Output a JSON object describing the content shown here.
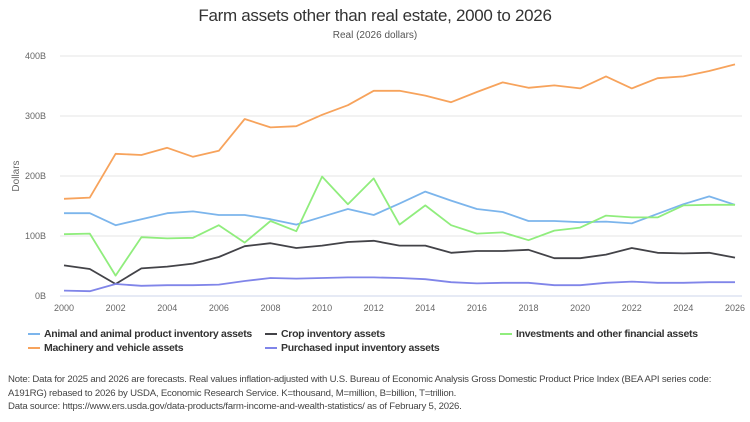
{
  "chart_data": {
    "type": "line",
    "title": "Farm assets other than real estate, 2000 to 2026",
    "subtitle": "Real (2026 dollars)",
    "ylabel": "Dollars",
    "xlabel": "",
    "ylim": [
      0,
      400
    ],
    "y_unit_suffix": "B",
    "y_ticks": [
      "0B",
      "100B",
      "200B",
      "300B",
      "400B"
    ],
    "x_ticks": [
      "2000",
      "2002",
      "2004",
      "2006",
      "2008",
      "2010",
      "2012",
      "2014",
      "2016",
      "2018",
      "2020",
      "2022",
      "2024",
      "2026"
    ],
    "grid": true,
    "legend_position": "bottom",
    "x": [
      2000,
      2001,
      2002,
      2003,
      2004,
      2005,
      2006,
      2007,
      2008,
      2009,
      2010,
      2011,
      2012,
      2013,
      2014,
      2015,
      2016,
      2017,
      2018,
      2019,
      2020,
      2021,
      2022,
      2023,
      2024,
      2025,
      2026
    ],
    "series": [
      {
        "name": "Animal and animal product inventory assets",
        "color": "#7cb5ec",
        "values": [
          138,
          138,
          118,
          128,
          138,
          141,
          135,
          135,
          128,
          119,
          132,
          145,
          135,
          154,
          174,
          159,
          145,
          140,
          125,
          125,
          123,
          124,
          121,
          137,
          153,
          166,
          152
        ]
      },
      {
        "name": "Crop inventory assets",
        "color": "#434348",
        "values": [
          51,
          45,
          20,
          46,
          49,
          54,
          65,
          83,
          88,
          80,
          84,
          90,
          92,
          84,
          84,
          72,
          75,
          75,
          77,
          63,
          63,
          69,
          80,
          72,
          71,
          72,
          64
        ]
      },
      {
        "name": "Investments and other financial assets",
        "color": "#90ed7d",
        "values": [
          103,
          104,
          34,
          98,
          96,
          97,
          118,
          89,
          125,
          108,
          199,
          153,
          196,
          119,
          151,
          118,
          104,
          106,
          93,
          109,
          114,
          134,
          131,
          131,
          151,
          152,
          152
        ]
      },
      {
        "name": "Machinery and vehicle assets",
        "color": "#f7a35c",
        "values": [
          162,
          164,
          237,
          235,
          247,
          232,
          242,
          295,
          281,
          283,
          302,
          318,
          342,
          342,
          334,
          323,
          340,
          356,
          347,
          351,
          346,
          366,
          346,
          363,
          366,
          375,
          386
        ]
      },
      {
        "name": "Purchased input inventory assets",
        "color": "#8085e9",
        "values": [
          9,
          8,
          20,
          17,
          18,
          18,
          19,
          25,
          30,
          29,
          30,
          31,
          31,
          30,
          28,
          23,
          21,
          22,
          22,
          18,
          18,
          22,
          24,
          22,
          22,
          23,
          23
        ]
      }
    ]
  },
  "notes": [
    "Note: Data for 2025 and 2026 are forecasts. Real values inflation-adjusted with U.S. Bureau of Economic Analysis Gross Domestic Product Price Index (BEA API series code: A191RG) rebased to 2026 by USDA, Economic Research Service. K=thousand, M=million, B=billion, T=trillion.",
    "Data source: https://www.ers.usda.gov/data-products/farm-income-and-wealth-statistics/ as of February 5, 2026."
  ]
}
